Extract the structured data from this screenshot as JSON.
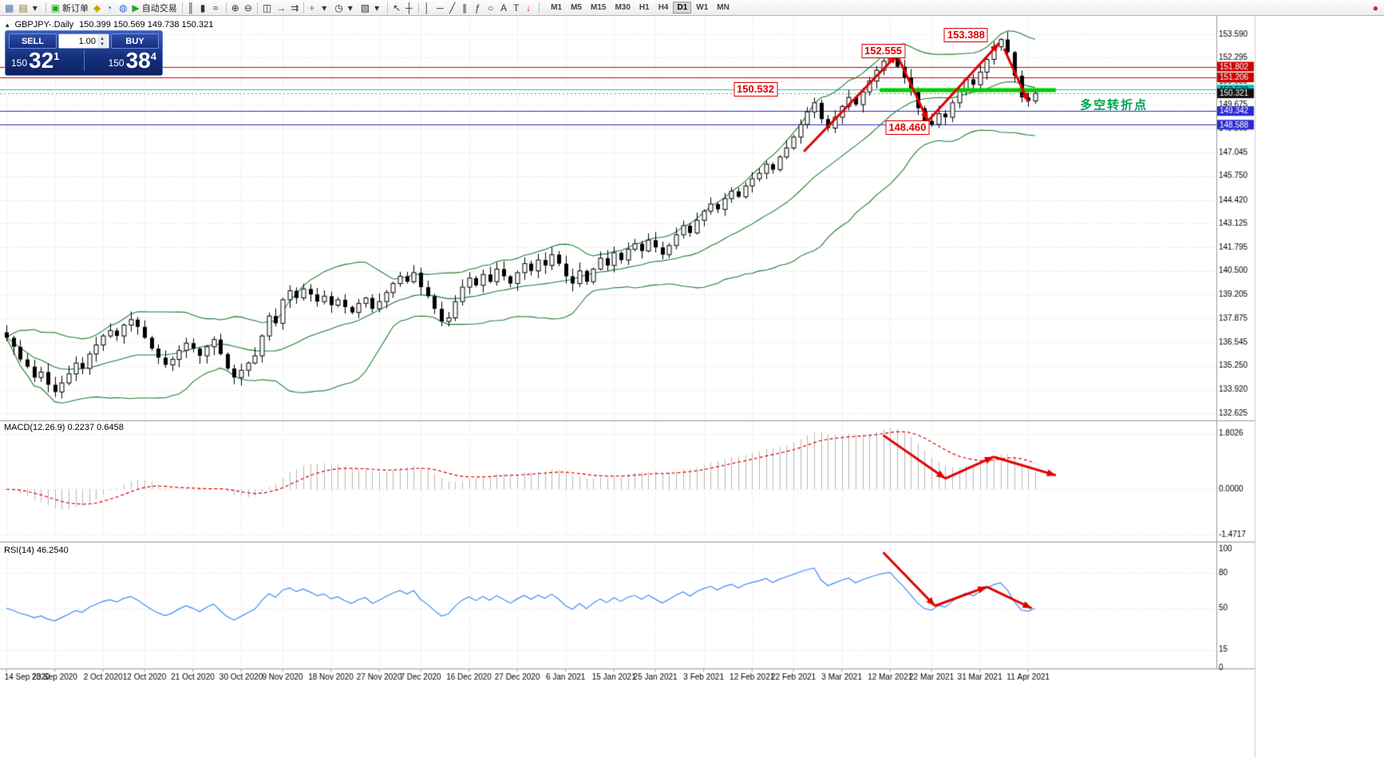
{
  "toolbar": {
    "items": [
      {
        "t": "btn",
        "name": "new-chart-icon",
        "glyph": "▦",
        "color": "#4a6fb5"
      },
      {
        "t": "btn",
        "name": "profiles-icon",
        "glyph": "▤",
        "color": "#8a7a33"
      },
      {
        "t": "btn",
        "name": "chart-list-dropdown-icon",
        "glyph": "▾",
        "color": "#333333"
      },
      {
        "t": "sep"
      },
      {
        "t": "btn",
        "name": "new-order-button",
        "glyph": "▣",
        "color": "#1fa31f",
        "label": "新订单"
      },
      {
        "t": "btn",
        "name": "expert-advisors-icon",
        "glyph": "◆",
        "color": "#c8a400"
      },
      {
        "t": "btn",
        "name": "depth-of-market-icon",
        "glyph": "◔",
        "color": "#2b6bd6"
      },
      {
        "t": "btn",
        "name": "community-icon",
        "glyph": "◍",
        "color": "#2b6bd6"
      },
      {
        "t": "btn",
        "name": "autotrading-button",
        "glyph": "▶",
        "color": "#1fa31f",
        "label": "自动交易"
      },
      {
        "t": "sep"
      },
      {
        "t": "btn",
        "name": "bar-chart-icon",
        "glyph": "║",
        "color": "#333333"
      },
      {
        "t": "btn",
        "name": "candlestick-chart-icon",
        "glyph": "▮",
        "color": "#333333"
      },
      {
        "t": "btn",
        "name": "line-chart-icon",
        "glyph": "≈",
        "color": "#333333"
      },
      {
        "t": "sep"
      },
      {
        "t": "btn",
        "name": "zoom-in-icon",
        "glyph": "⊕",
        "color": "#333333"
      },
      {
        "t": "btn",
        "name": "zoom-out-icon",
        "glyph": "⊖",
        "color": "#333333"
      },
      {
        "t": "sep"
      },
      {
        "t": "btn",
        "name": "tile-windows-icon",
        "glyph": "◫",
        "color": "#333333"
      },
      {
        "t": "btn",
        "name": "auto-scroll-icon",
        "glyph": "→",
        "color": "#333333"
      },
      {
        "t": "btn",
        "name": "chart-shift-icon",
        "glyph": "⇉",
        "color": "#333333"
      },
      {
        "t": "sep"
      },
      {
        "t": "btn",
        "name": "indicators-icon",
        "glyph": "+",
        "color": "#1fa31f"
      },
      {
        "t": "btn",
        "name": "indicators-dropdown-icon",
        "glyph": "▾",
        "color": "#333333"
      },
      {
        "t": "btn",
        "name": "periods-icon",
        "glyph": "◷",
        "color": "#333333"
      },
      {
        "t": "btn",
        "name": "periods-dropdown-icon",
        "glyph": "▾",
        "color": "#333333"
      },
      {
        "t": "btn",
        "name": "templates-icon",
        "glyph": "▧",
        "color": "#333333"
      },
      {
        "t": "btn",
        "name": "templates-dropdown-icon",
        "glyph": "▾",
        "color": "#333333"
      },
      {
        "t": "sep"
      },
      {
        "t": "btn",
        "name": "cursor-icon",
        "glyph": "↖",
        "color": "#333333"
      },
      {
        "t": "btn",
        "name": "crosshair-icon",
        "glyph": "┼",
        "color": "#333333"
      },
      {
        "t": "sep"
      },
      {
        "t": "btn",
        "name": "vertical-line-icon",
        "glyph": "│",
        "color": "#333333"
      },
      {
        "t": "btn",
        "name": "horizontal-line-icon",
        "glyph": "─",
        "color": "#333333"
      },
      {
        "t": "btn",
        "name": "trendline-icon",
        "glyph": "╱",
        "color": "#333333"
      },
      {
        "t": "btn",
        "name": "channel-icon",
        "glyph": "∥",
        "color": "#333333"
      },
      {
        "t": "btn",
        "name": "fibonacci-icon",
        "glyph": "ƒ",
        "color": "#333333"
      },
      {
        "t": "btn",
        "name": "ellipse-icon",
        "glyph": "○",
        "color": "#333333"
      },
      {
        "t": "btn",
        "name": "text-icon",
        "glyph": "A",
        "color": "#333333"
      },
      {
        "t": "btn",
        "name": "text-label-icon",
        "glyph": "T",
        "color": "#333333"
      },
      {
        "t": "btn",
        "name": "arrows-tool-icon",
        "glyph": "↓",
        "color": "#d22222"
      },
      {
        "t": "sep"
      }
    ],
    "timeframes": {
      "options": [
        "M1",
        "M5",
        "M15",
        "M30",
        "H1",
        "H4",
        "D1",
        "W1",
        "MN"
      ],
      "active": "D1"
    },
    "record": {
      "glyph": "●"
    }
  },
  "chart": {
    "collapse_icon": "▴",
    "symbol_period": "GBPJPY-.Daily",
    "ohlc": "150.399 150.569 149.738 150.321"
  },
  "trade_panel": {
    "sell_label": "SELL",
    "buy_label": "BUY",
    "volume": "1.00",
    "spin_up_glyph": "▴",
    "spin_down_glyph": "▾",
    "sell_price": {
      "prefix": "150",
      "big": "32",
      "sup": "1"
    },
    "buy_price": {
      "prefix": "150",
      "big": "38",
      "sup": "4"
    }
  },
  "colors": {
    "bull": "#ffffff",
    "bear": "#000000",
    "bollinger": "#1e7d32",
    "grid": "#dadada",
    "green_line": "#00cc00",
    "arrow": "#e00000",
    "macd_hist": "#b8b8b8",
    "macd_signal": "#e00000",
    "rsi": "#3b8df0"
  },
  "price_axis": {
    "ticks": [
      "153.590",
      "152.295",
      "150.985",
      "149.675",
      "148.365",
      "147.045",
      "145.750",
      "144.420",
      "143.125",
      "141.795",
      "140.500",
      "139.205",
      "137.875",
      "136.545",
      "135.250",
      "133.920",
      "132.625"
    ],
    "special_labels": [
      {
        "label": "151.802",
        "value": 151.802,
        "bg": "#cc0000",
        "fg": "#ffffff"
      },
      {
        "label": "151.206",
        "value": 151.206,
        "bg": "#cc0000",
        "fg": "#ffffff"
      },
      {
        "label": "150.532",
        "value": 150.532,
        "bg": "#00c8c8",
        "fg": "#000000"
      },
      {
        "label": "150.321",
        "value": 150.321,
        "bg": "#111111",
        "fg": "#ffffff"
      },
      {
        "label": "149.342",
        "value": 149.342,
        "bg": "#2b2bd0",
        "fg": "#ffffff"
      },
      {
        "label": "148.588",
        "value": 148.588,
        "bg": "#2b2bd0",
        "fg": "#ffffff"
      }
    ]
  },
  "hlines": [
    {
      "value": 151.802,
      "color": "#cc0000"
    },
    {
      "value": 151.206,
      "color": "#cc0000"
    },
    {
      "value": 150.532,
      "color": "#00c8c8"
    },
    {
      "value": 149.342,
      "color": "#2b2bd0"
    },
    {
      "value": 148.588,
      "color": "#2b2bd0"
    }
  ],
  "current_price": 150.321,
  "annotations": {
    "callouts": [
      {
        "text": "152.555",
        "i": 127,
        "p": 152.68
      },
      {
        "text": "153.388",
        "i": 139,
        "p": 153.55
      },
      {
        "text": "150.532",
        "i": 108.5,
        "p": 150.55
      },
      {
        "text": "148.460",
        "i": 130.5,
        "p": 148.43
      }
    ],
    "note": {
      "text": "多空转折点",
      "i": 155.5,
      "p": 149.72,
      "color": "#00a550"
    },
    "green_segment": {
      "i1": 126.5,
      "i2": 152,
      "p": 150.5
    },
    "price_arrows": [
      {
        "i1": 115.5,
        "p1": 147.1,
        "i2": 129,
        "p2": 152.45
      },
      {
        "i1": 129,
        "p1": 152.45,
        "i2": 133.5,
        "p2": 148.8
      },
      {
        "i1": 133.5,
        "p1": 148.8,
        "i2": 143.8,
        "p2": 153.1
      },
      {
        "i1": 144.5,
        "p1": 152.8,
        "i2": 148,
        "p2": 149.85
      }
    ],
    "macd_arrows": [
      {
        "i1": 127,
        "v1": 1.75,
        "i2": 136,
        "v2": 0.35
      },
      {
        "i1": 136,
        "v1": 0.35,
        "i2": 143,
        "v2": 1.05
      },
      {
        "i1": 143,
        "v1": 1.05,
        "i2": 152,
        "v2": 0.45
      }
    ],
    "rsi_arrows": [
      {
        "i1": 127,
        "v1": 97,
        "i2": 134.5,
        "v2": 52
      },
      {
        "i1": 134.5,
        "v1": 52,
        "i2": 142,
        "v2": 68
      },
      {
        "i1": 142,
        "v1": 68,
        "i2": 148.5,
        "v2": 50
      }
    ]
  },
  "macd_panel": {
    "label": "MACD(12.26.9) 0.2237 0.6458",
    "scale": [
      "1.8026",
      "0.0000",
      "-1.4717"
    ],
    "scale_values": [
      1.8026,
      0,
      -1.4717
    ]
  },
  "rsi_panel": {
    "label": "RSI(14) 46.2540",
    "levels": [
      {
        "label": "100",
        "v": 100
      },
      {
        "label": "80",
        "v": 80
      },
      {
        "label": "50",
        "v": 50
      },
      {
        "label": "15",
        "v": 15
      },
      {
        "label": "0",
        "v": 0
      }
    ]
  },
  "date_axis": {
    "ticks": [
      {
        "label": "14 Sep 2020",
        "i": 0
      },
      {
        "label": "23 Sep 2020",
        "i": 7
      },
      {
        "label": "2 Oct 2020",
        "i": 14
      },
      {
        "label": "12 Oct 2020",
        "i": 20
      },
      {
        "label": "21 Oct 2020",
        "i": 27
      },
      {
        "label": "30 Oct 2020",
        "i": 34
      },
      {
        "label": "9 Nov 2020",
        "i": 40
      },
      {
        "label": "18 Nov 2020",
        "i": 47
      },
      {
        "label": "27 Nov 2020",
        "i": 54
      },
      {
        "label": "7 Dec 2020",
        "i": 60
      },
      {
        "label": "16 Dec 2020",
        "i": 67
      },
      {
        "label": "27 Dec 2020",
        "i": 74
      },
      {
        "label": "6 Jan 2021",
        "i": 81
      },
      {
        "label": "15 Jan 2021",
        "i": 88
      },
      {
        "label": "25 Jan 2021",
        "i": 94
      },
      {
        "label": "3 Feb 2021",
        "i": 101
      },
      {
        "label": "12 Feb 2021",
        "i": 108
      },
      {
        "label": "22 Feb 2021",
        "i": 114
      },
      {
        "label": "3 Mar 2021",
        "i": 121
      },
      {
        "label": "12 Mar 2021",
        "i": 128
      },
      {
        "label": "22 Mar 2021",
        "i": 134
      },
      {
        "label": "31 Mar 2021",
        "i": 141
      },
      {
        "label": "11 Apr 2021",
        "i": 148
      }
    ]
  },
  "chart_data": {
    "type": "candlestick",
    "symbol": "GBPJPY",
    "timeframe": "Daily",
    "y_range": [
      132.625,
      153.59
    ],
    "closes": [
      136.8,
      136.3,
      135.6,
      135.2,
      134.6,
      134.9,
      134.2,
      133.8,
      134.3,
      134.8,
      135.4,
      135.1,
      135.9,
      136.4,
      136.9,
      137.2,
      136.9,
      137.5,
      137.8,
      137.4,
      136.8,
      136.2,
      135.7,
      135.3,
      135.6,
      136.1,
      136.5,
      136.2,
      135.8,
      136.3,
      136.7,
      135.9,
      135.1,
      134.6,
      135.0,
      135.4,
      135.8,
      136.9,
      138.0,
      137.6,
      138.9,
      139.4,
      139.0,
      139.5,
      139.2,
      138.8,
      139.1,
      138.6,
      138.9,
      138.5,
      138.2,
      138.7,
      139.0,
      138.4,
      138.8,
      139.3,
      139.8,
      140.2,
      139.9,
      140.4,
      139.6,
      139.1,
      138.4,
      137.7,
      137.9,
      138.8,
      139.6,
      140.1,
      139.7,
      140.3,
      139.9,
      140.6,
      140.2,
      139.8,
      140.4,
      140.9,
      140.5,
      141.1,
      140.8,
      141.4,
      140.9,
      140.2,
      139.8,
      140.5,
      139.9,
      140.6,
      141.2,
      140.8,
      141.5,
      141.1,
      141.7,
      142.0,
      141.6,
      142.2,
      141.8,
      141.4,
      141.9,
      142.5,
      143.0,
      142.6,
      143.3,
      143.8,
      144.2,
      143.9,
      144.5,
      144.9,
      144.6,
      145.2,
      145.6,
      145.9,
      146.4,
      146.1,
      146.8,
      147.3,
      147.9,
      148.6,
      149.3,
      149.8,
      148.9,
      148.4,
      149.0,
      149.6,
      150.1,
      149.7,
      150.4,
      151.0,
      151.6,
      152.1,
      152.4,
      151.8,
      151.2,
      150.4,
      149.5,
      148.8,
      148.6,
      149.2,
      149.0,
      149.8,
      150.5,
      151.1,
      150.8,
      151.5,
      152.2,
      152.9,
      153.3,
      152.6,
      151.3,
      150.1,
      149.9,
      150.321
    ],
    "extremes": {
      "128": {
        "high": 152.555
      },
      "134": {
        "low": 148.46
      },
      "144": {
        "high": 153.388
      },
      "149": {
        "high": 150.569,
        "low": 149.738
      }
    },
    "last_ohlc": {
      "open": 150.399,
      "high": 150.569,
      "low": 149.738,
      "close": 150.321
    },
    "overlays": [
      {
        "type": "bollinger",
        "period": 20,
        "deviation": 2,
        "color": "#1e7d32"
      }
    ],
    "panes": [
      {
        "type": "macd",
        "fast": 12,
        "slow": 26,
        "signal": 9,
        "current": [
          0.2237,
          0.6458
        ]
      },
      {
        "type": "rsi",
        "period": 14,
        "current": 46.254
      }
    ]
  }
}
